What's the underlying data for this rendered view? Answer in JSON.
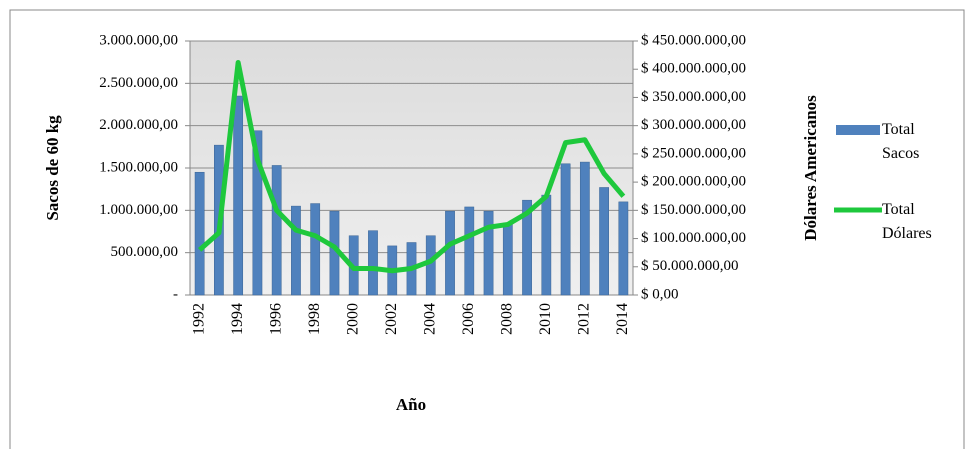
{
  "chart_data": {
    "type": "bar-line",
    "x_label": "Año",
    "y_label": "Sacos de 60 kg",
    "y2_label": "Dólares Americanos",
    "categories": [
      "1992",
      null,
      "1994",
      null,
      "1996",
      null,
      "1998",
      null,
      "2000",
      null,
      "2002",
      null,
      "2004",
      null,
      "2006",
      null,
      "2008",
      null,
      "2010",
      null,
      "2012",
      null,
      "2014"
    ],
    "series": [
      {
        "name": "Total Sacos",
        "type": "bar",
        "color": "#4f81bd",
        "values": [
          1450000,
          1770000,
          2350000,
          1940000,
          1530000,
          1050000,
          1080000,
          990000,
          700000,
          760000,
          580000,
          620000,
          700000,
          990000,
          1040000,
          990000,
          850000,
          1120000,
          1180000,
          1550000,
          1570000,
          1270000,
          1100000
        ]
      },
      {
        "name": "Total Dólares",
        "type": "line",
        "axis": "y2",
        "color": "#1ec83c",
        "values": [
          80000000,
          110000000,
          412000000,
          240000000,
          150000000,
          115000000,
          105000000,
          85000000,
          47000000,
          47000000,
          43000000,
          47000000,
          60000000,
          90000000,
          105000000,
          120000000,
          125000000,
          145000000,
          175000000,
          270000000,
          275000000,
          215000000,
          175000000
        ]
      }
    ],
    "ylim": [
      0,
      3000000
    ],
    "yticks": [
      {
        "value": 0,
        "label": "-"
      },
      {
        "value": 500000,
        "label": "500.000,00"
      },
      {
        "value": 1000000,
        "label": "1.000.000,00"
      },
      {
        "value": 1500000,
        "label": "1.500.000,00"
      },
      {
        "value": 2000000,
        "label": "2.000.000,00"
      },
      {
        "value": 2500000,
        "label": "2.500.000,00"
      },
      {
        "value": 3000000,
        "label": "3.000.000,00"
      }
    ],
    "y2lim": [
      0,
      450000000
    ],
    "y2ticks": [
      {
        "value": 0,
        "label": "$ 0,00"
      },
      {
        "value": 50000000,
        "label": "$ 50.000.000,00"
      },
      {
        "value": 100000000,
        "label": "$ 100.000.000,00"
      },
      {
        "value": 150000000,
        "label": "$ 150.000.000,00"
      },
      {
        "value": 200000000,
        "label": "$ 200.000.000,00"
      },
      {
        "value": 250000000,
        "label": "$ 250.000.000,00"
      },
      {
        "value": 300000000,
        "label": "$ 300.000.000,00"
      },
      {
        "value": 350000000,
        "label": "$ 350.000.000,00"
      },
      {
        "value": 400000000,
        "label": "$ 400.000.000,00"
      },
      {
        "value": 450000000,
        "label": "$ 450.000.000,00"
      }
    ],
    "grid": true,
    "legend": "right"
  }
}
